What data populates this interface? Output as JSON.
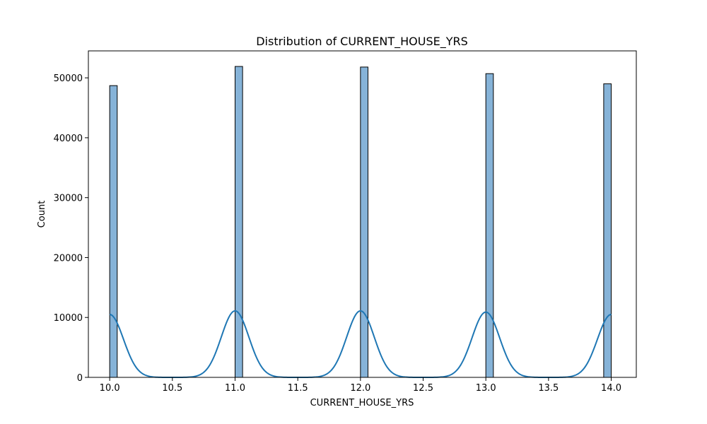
{
  "chart_data": {
    "type": "bar",
    "title": "Distribution of CURRENT_HOUSE_YRS",
    "xlabel": "CURRENT_HOUSE_YRS",
    "ylabel": "Count",
    "xlim": [
      9.83,
      14.2
    ],
    "ylim": [
      0,
      54500
    ],
    "xticks": [
      "10.0",
      "10.5",
      "11.0",
      "11.5",
      "12.0",
      "12.5",
      "13.0",
      "13.5",
      "14.0"
    ],
    "yticks": [
      "0",
      "10000",
      "20000",
      "30000",
      "40000",
      "50000"
    ],
    "bin_width": 0.06,
    "bins": [
      {
        "x0": 10.0,
        "count": 48700
      },
      {
        "x0": 11.0,
        "count": 51900
      },
      {
        "x0": 12.0,
        "count": 51800
      },
      {
        "x0": 13.0,
        "count": 50700
      },
      {
        "x0": 13.94,
        "count": 49000
      }
    ],
    "kde_peaks": [
      {
        "x": 10.0,
        "y": 10500
      },
      {
        "x": 11.0,
        "y": 11100
      },
      {
        "x": 12.0,
        "y": 11100
      },
      {
        "x": 13.0,
        "y": 10900
      },
      {
        "x": 14.0,
        "y": 10500
      }
    ],
    "grid": false,
    "colors": {
      "bar_fill": "#86b3d8",
      "bar_edge": "#000000",
      "kde_line": "#1f77b4"
    }
  }
}
